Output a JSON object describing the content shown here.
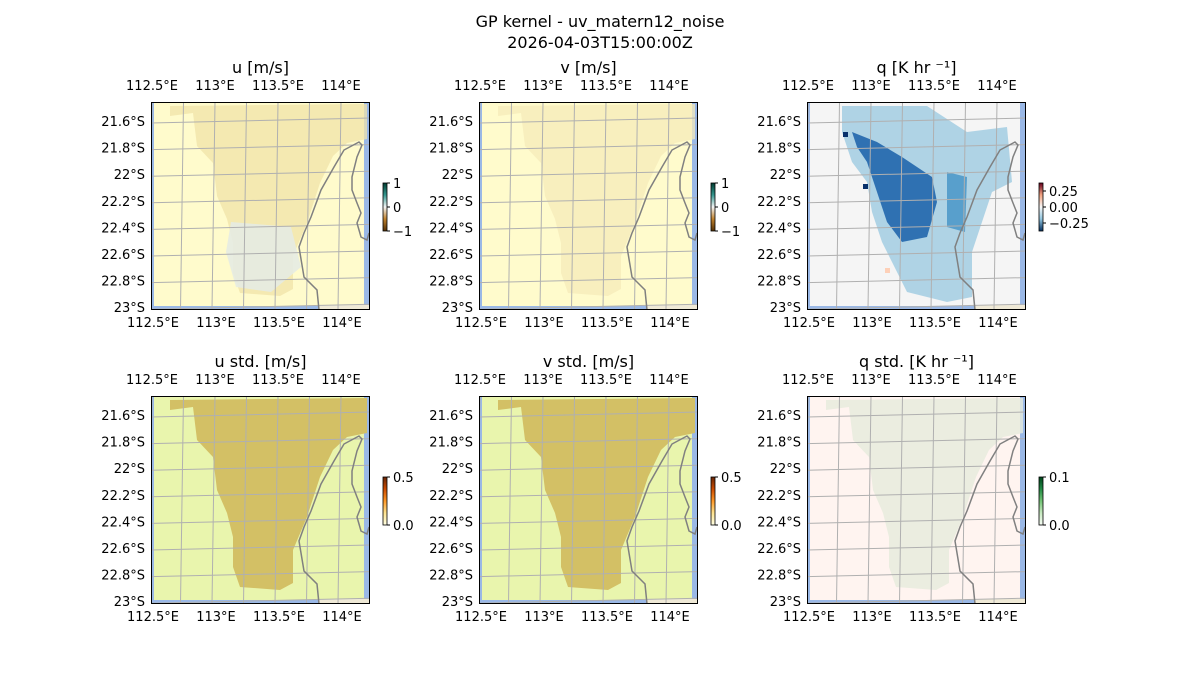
{
  "figure": {
    "title": "GP kernel - uv_matern12_noise",
    "subtitle": "2026-04-03T15:00:00Z"
  },
  "colors": {
    "ocean": "#9ab8e6",
    "land": "#efe9d6",
    "grid": "#b0b0b0",
    "coast": "#808080"
  },
  "chart_data": [
    {
      "type": "heatmap",
      "title": "u [m/s]",
      "xlabel_ticks": [
        "112.5°E",
        "113°E",
        "113.5°E",
        "114°E"
      ],
      "ylabel_ticks": [
        "21.6°S",
        "21.8°S",
        "22°S",
        "22.2°S",
        "22.4°S",
        "22.6°S",
        "22.8°S",
        "23°S"
      ],
      "colorbar": {
        "ticks": [
          "1",
          "0",
          "−1"
        ],
        "range": [
          -1,
          1
        ],
        "cmap": "BrBG"
      },
      "background": "#fffbcc",
      "blob": "#f0e3a8",
      "blob2": "#e6ebe3"
    },
    {
      "type": "heatmap",
      "title": "v [m/s]",
      "xlabel_ticks": [
        "112.5°E",
        "113°E",
        "113.5°E",
        "114°E"
      ],
      "ylabel_ticks": [
        "21.6°S",
        "21.8°S",
        "22°S",
        "22.2°S",
        "22.4°S",
        "22.6°S",
        "22.8°S",
        "23°S"
      ],
      "colorbar": {
        "ticks": [
          "1",
          "0",
          "−1"
        ],
        "range": [
          -1,
          1
        ],
        "cmap": "BrBG"
      },
      "background": "#fffbcc",
      "blob": "#f6ebb9",
      "blob2": null
    },
    {
      "type": "heatmap",
      "title": "q [K hr ⁻¹]",
      "xlabel_ticks": [
        "112.5°E",
        "113°E",
        "113.5°E",
        "114°E"
      ],
      "ylabel_ticks": [
        "21.6°S",
        "21.8°S",
        "22°S",
        "22.2°S",
        "22.4°S",
        "22.6°S",
        "22.8°S",
        "23°S"
      ],
      "colorbar": {
        "ticks": [
          "0.25",
          "0.00",
          "−0.25"
        ],
        "range": [
          -0.4,
          0.4
        ],
        "cmap": "RdBu_r"
      },
      "background": "#f5f5f5",
      "blob": "#9ecae1",
      "blob2": "#2166ac"
    },
    {
      "type": "heatmap",
      "title": "u std. [m/s]",
      "xlabel_ticks": [
        "112.5°E",
        "113°E",
        "113.5°E",
        "114°E"
      ],
      "ylabel_ticks": [
        "21.6°S",
        "21.8°S",
        "22°S",
        "22.2°S",
        "22.4°S",
        "22.6°S",
        "22.8°S",
        "23°S"
      ],
      "colorbar": {
        "ticks": [
          "0.5",
          "0.0"
        ],
        "range": [
          0,
          0.5
        ],
        "cmap": "YlOrBr"
      },
      "background": "#e9f5ad",
      "blob": "#d3c065",
      "blob2": null
    },
    {
      "type": "heatmap",
      "title": "v std. [m/s]",
      "xlabel_ticks": [
        "112.5°E",
        "113°E",
        "113.5°E",
        "114°E"
      ],
      "ylabel_ticks": [
        "21.6°S",
        "21.8°S",
        "22°S",
        "22.2°S",
        "22.4°S",
        "22.6°S",
        "22.8°S",
        "23°S"
      ],
      "colorbar": {
        "ticks": [
          "0.5",
          "0.0"
        ],
        "range": [
          0,
          0.5
        ],
        "cmap": "YlOrBr"
      },
      "background": "#e9f5ad",
      "blob": "#d3c065",
      "blob2": null
    },
    {
      "type": "heatmap",
      "title": "q std. [K hr ⁻¹]",
      "xlabel_ticks": [
        "112.5°E",
        "113°E",
        "113.5°E",
        "114°E"
      ],
      "ylabel_ticks": [
        "21.6°S",
        "21.8°S",
        "22°S",
        "22.2°S",
        "22.4°S",
        "22.6°S",
        "22.8°S",
        "23°S"
      ],
      "colorbar": {
        "ticks": [
          "0.1",
          "0.0"
        ],
        "range": [
          0,
          0.1
        ],
        "cmap": "Greens"
      },
      "background": "#fff4f0",
      "blob": "#e6ebdc",
      "blob2": null
    }
  ]
}
